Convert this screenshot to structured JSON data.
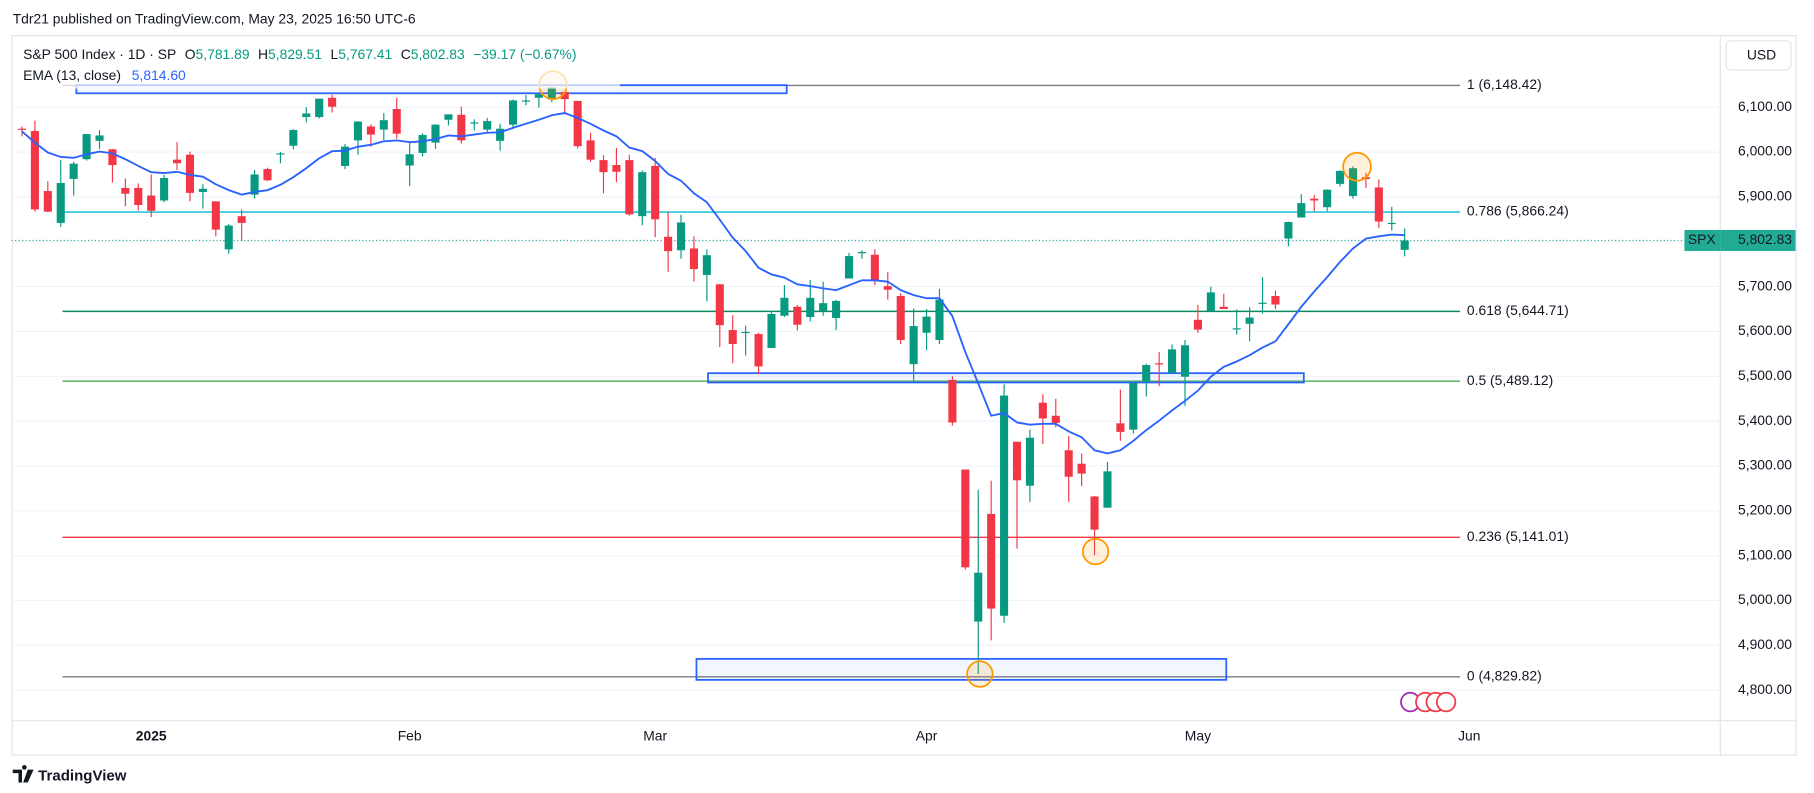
{
  "header": {
    "publisher": "Tdr21 published on TradingView.com, May 23, 2025 16:50 UTC-6",
    "symbol": "S&P 500 Index · 1D · SP",
    "o_label": "O",
    "o": "5,781.89",
    "h_label": "H",
    "h": "5,829.51",
    "l_label": "L",
    "l": "5,767.41",
    "c_label": "C",
    "c": "5,802.83",
    "change": "−39.17 (−0.67%)",
    "ema_label": "EMA (13, close)",
    "ema_value": "5,814.60",
    "currency": "USD"
  },
  "chart_data": {
    "type": "candlestick",
    "categories": [
      null,
      null,
      null,
      null,
      null,
      null,
      null,
      null,
      null,
      null,
      "2025",
      null,
      null,
      null,
      null,
      null,
      null,
      null,
      null,
      null,
      null,
      null,
      null,
      null,
      null,
      null,
      null,
      null,
      null,
      null,
      "Feb",
      null,
      null,
      null,
      null,
      null,
      null,
      null,
      null,
      null,
      null,
      null,
      null,
      null,
      null,
      null,
      null,
      null,
      null,
      "Mar",
      null,
      null,
      null,
      null,
      null,
      null,
      null,
      null,
      null,
      null,
      null,
      null,
      null,
      null,
      null,
      null,
      null,
      null,
      null,
      null,
      "Apr",
      null,
      null,
      null,
      null,
      null,
      null,
      null,
      null,
      null,
      null,
      null,
      null,
      null,
      null,
      null,
      null,
      null,
      null,
      null,
      null,
      "May",
      null,
      null,
      null,
      null,
      null,
      null,
      null,
      null,
      null,
      null,
      null,
      null,
      null,
      null,
      null,
      null,
      null,
      null,
      null,
      null,
      "Jun"
    ],
    "series": [
      {
        "name": "SPX",
        "up_color": "#089981",
        "down_color": "#f23645",
        "open": [
          6052,
          6047,
          5913,
          5842,
          5940,
          5984,
          6025,
          6006,
          5920,
          5920,
          5903,
          5892,
          5983,
          5994,
          5911,
          5890,
          5783,
          5857,
          5905,
          5962,
          5995,
          6014,
          6078,
          6078,
          6121,
          5969,
          6026,
          6057,
          6050,
          6096,
          5970,
          5998,
          6021,
          6072,
          6083,
          6065,
          6050,
          6025,
          6061,
          6115,
          6121,
          6117,
          6134,
          6114,
          6026,
          5982,
          5971,
          5982,
          5857,
          5969,
          5811,
          5781,
          5785,
          5726,
          5705,
          5603,
          5599,
          5594,
          5563,
          5635,
          5655,
          5632,
          5646,
          5630,
          5718,
          5775,
          5771,
          5701,
          5679,
          5527,
          5597,
          5581,
          5492,
          5292,
          4953,
          5193,
          4966,
          5354,
          5256,
          5441,
          5412,
          5335,
          5305,
          5232,
          5207,
          5395,
          5381,
          5489,
          5529,
          5508,
          5499,
          5626,
          5646,
          5655,
          5605,
          5617,
          5663,
          5679,
          5807,
          5854,
          5896,
          5877,
          5929,
          5902,
          5944,
          5921,
          5842,
          5781.89,
          null,
          null,
          null,
          null,
          null
        ],
        "high": [
          6057,
          6070,
          5935,
          5982,
          5978,
          6040,
          6049,
          6007,
          5941,
          5930,
          5950,
          5949,
          6022,
          6001,
          5928,
          5890,
          5840,
          5872,
          5960,
          5965,
          6000,
          6051,
          6100,
          6119,
          6128,
          6018,
          6069,
          6062,
          6087,
          6121,
          6022,
          6042,
          6062,
          6084,
          6101,
          6073,
          6076,
          6063,
          6117,
          6127,
          6129,
          6147,
          6134,
          6114,
          6043,
          5993,
          6009,
          5994,
          5959,
          5987,
          5866,
          5860,
          5812,
          5783,
          5706,
          5636,
          5613,
          5597,
          5645,
          5703,
          5659,
          5715,
          5711,
          5670,
          5775,
          5781,
          5783,
          5732,
          5685,
          5651,
          5650,
          5695,
          5500,
          5292,
          5247,
          5267,
          5482,
          5354,
          5381,
          5460,
          5450,
          5367,
          5328,
          5233,
          5309,
          5470,
          5485,
          5528,
          5554,
          5571,
          5581,
          5659,
          5700,
          5684,
          5649,
          5654,
          5721,
          5691,
          5845,
          5906,
          5904,
          5917,
          5959,
          5968,
          5953,
          5939,
          5878,
          5829.51,
          null,
          null,
          null,
          null,
          null
        ],
        "low": [
          6035,
          5867,
          5866,
          5833,
          5903,
          5981,
          6007,
          5932,
          5879,
          5870,
          5855,
          5888,
          5960,
          5890,
          5874,
          5812,
          5773,
          5802,
          5896,
          5935,
          5975,
          6006,
          6066,
          6075,
          6088,
          5962,
          5994,
          6012,
          6027,
          6030,
          5924,
          5990,
          6007,
          6059,
          6019,
          6048,
          6043,
          6003,
          6052,
          6104,
          6099,
          6111,
          6084,
          6008,
          5978,
          5908,
          5933,
          5858,
          5837,
          5810,
          5733,
          5762,
          5711,
          5667,
          5565,
          5529,
          5546,
          5505,
          5563,
          5632,
          5602,
          5622,
          5635,
          5603,
          5718,
          5762,
          5703,
          5671,
          5572,
          5489,
          5558,
          5572,
          5390,
          5069,
          4836,
          4911,
          4950,
          5116,
          5220,
          5349,
          5386,
          5220,
          5255,
          5101,
          5207,
          5356,
          5372,
          5455,
          5478,
          5505,
          5434,
          5597,
          5645,
          5651,
          5593,
          5578,
          5640,
          5650,
          5790,
          5854,
          5868,
          5868,
          5923,
          5896,
          5920,
          5830,
          5825,
          5767.41,
          null,
          null,
          null,
          null,
          null
        ],
        "close": [
          6050,
          5872,
          5867,
          5931,
          5974,
          6040,
          6037,
          5971,
          5907,
          5882,
          5869,
          5942,
          5975,
          5909,
          5918,
          5827,
          5836,
          5842,
          5950,
          5937,
          5997,
          6049,
          6086,
          6119,
          6101,
          6012,
          6068,
          6039,
          6071,
          6041,
          5995,
          6038,
          6061,
          6084,
          6026,
          6066,
          6069,
          6052,
          6115,
          6115,
          6129,
          6144,
          6118,
          6013,
          5983,
          5955,
          5956,
          5861,
          5955,
          5850,
          5779,
          5843,
          5739,
          5770,
          5614,
          5572,
          5599,
          5522,
          5639,
          5675,
          5615,
          5675,
          5663,
          5668,
          5768,
          5777,
          5712,
          5693,
          5581,
          5612,
          5633,
          5671,
          5397,
          5074,
          5062,
          4982,
          5457,
          5268,
          5363,
          5406,
          5396,
          5276,
          5283,
          5158,
          5288,
          5376,
          5485,
          5525,
          5528,
          5560,
          5569,
          5604,
          5687,
          5650,
          5607,
          5631,
          5664,
          5660,
          5844,
          5886,
          5892,
          5916,
          5958,
          5964,
          5940,
          5845,
          5842,
          5802.83,
          null,
          null,
          null,
          null,
          null
        ]
      }
    ],
    "ema": {
      "color": "#2962ff",
      "values": [
        6046,
        6021,
        5999,
        5989,
        5987,
        5995,
        6001,
        5997,
        5984,
        5969,
        5955,
        5953,
        5956,
        5949,
        5945,
        5928,
        5915,
        5905,
        5911,
        5915,
        5927,
        5944,
        5964,
        5986,
        6002,
        6003,
        6012,
        6016,
        6024,
        6026,
        6022,
        6024,
        6029,
        6037,
        6035,
        6039,
        6043,
        6044,
        6054,
        6063,
        6072,
        6082,
        6087,
        6076,
        6063,
        6048,
        6035,
        6010,
        6002,
        5980,
        5951,
        5936,
        5908,
        5888,
        5849,
        5809,
        5779,
        5742,
        5727,
        5720,
        5705,
        5701,
        5696,
        5692,
        5703,
        5714,
        5714,
        5711,
        5692,
        5681,
        5674,
        5674,
        5634,
        5554,
        5484,
        5412,
        5418,
        5397,
        5392,
        5394,
        5394,
        5377,
        5364,
        5335,
        5328,
        5335,
        5356,
        5380,
        5401,
        5424,
        5445,
        5468,
        5499,
        5521,
        5533,
        5547,
        5564,
        5578,
        5616,
        5655,
        5689,
        5721,
        5755,
        5785,
        5807,
        5812,
        5816,
        5814.6,
        null,
        null,
        null,
        null,
        null
      ]
    },
    "fib_levels": [
      {
        "price": 6148.42,
        "label": "1 (6,148.42)",
        "color": "#787b86"
      },
      {
        "price": 5866.24,
        "label": "0.786 (5,866.24)",
        "color": "#00bcd4"
      },
      {
        "price": 5644.71,
        "label": "0.618 (5,644.71)",
        "color": "#0b8a5f"
      },
      {
        "price": 5489.12,
        "label": "0.5 (5,489.12)",
        "color": "#4caf50"
      },
      {
        "price": 5141.01,
        "label": "0.236 (5,141.01)",
        "color": "#f23645"
      },
      {
        "price": 4829.82,
        "label": "0 (4,829.82)",
        "color": "#787b86"
      }
    ],
    "last_price": {
      "value": 5802.83,
      "label": "5,802.83",
      "color": "#22ab94"
    },
    "ylim": [
      4732,
      6261
    ],
    "yticks": [
      {
        "value": 4800,
        "label": "4,800.00"
      },
      {
        "value": 4900,
        "label": "4,900.00"
      },
      {
        "value": 5000,
        "label": "5,000.00"
      },
      {
        "value": 5100,
        "label": "5,100.00"
      },
      {
        "value": 5200,
        "label": "5,200.00"
      },
      {
        "value": 5300,
        "label": "5,300.00"
      },
      {
        "value": 5400,
        "label": "5,400.00"
      },
      {
        "value": 5500,
        "label": "5,500.00"
      },
      {
        "value": 5600,
        "label": "5,600.00"
      },
      {
        "value": 5700,
        "label": "5,700.00"
      },
      {
        "value": 5800,
        "label": "5,800.00"
      },
      {
        "value": 5900,
        "label": "5,900.00"
      },
      {
        "value": 6000,
        "label": "6,000.00"
      },
      {
        "value": 6100,
        "label": "6,100.00"
      }
    ],
    "grid": true
  },
  "footer": {
    "brand": "TradingView"
  }
}
